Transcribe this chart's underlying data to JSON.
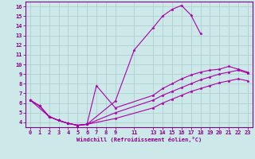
{
  "xlabel": "Windchill (Refroidissement éolien,°C)",
  "xlim": [
    -0.5,
    23.5
  ],
  "ylim": [
    3.5,
    16.5
  ],
  "xticks": [
    0,
    1,
    2,
    3,
    4,
    5,
    6,
    7,
    8,
    9,
    11,
    13,
    14,
    15,
    16,
    17,
    18,
    19,
    20,
    21,
    22,
    23
  ],
  "yticks": [
    4,
    5,
    6,
    7,
    8,
    9,
    10,
    11,
    12,
    13,
    14,
    15,
    16
  ],
  "bg_color": "#cce8e8",
  "line_color": "#aa00aa",
  "grid_color": "#aacccc",
  "curves": [
    {
      "x": [
        0,
        1,
        2,
        3,
        4,
        5,
        6,
        9,
        11,
        13,
        14,
        15,
        16,
        17,
        18
      ],
      "y": [
        6.3,
        5.7,
        4.6,
        4.2,
        3.9,
        3.7,
        3.8,
        6.2,
        11.5,
        13.8,
        15.0,
        15.7,
        16.1,
        15.1,
        13.2
      ]
    },
    {
      "x": [
        0,
        1,
        2,
        3,
        4,
        5,
        6,
        7,
        9,
        13,
        14,
        15,
        16,
        17,
        18,
        19,
        20,
        21,
        22,
        23
      ],
      "y": [
        6.3,
        5.7,
        4.6,
        4.2,
        3.9,
        3.7,
        3.8,
        7.8,
        5.5,
        6.8,
        7.5,
        8.0,
        8.5,
        8.9,
        9.2,
        9.4,
        9.5,
        9.8,
        9.5,
        9.2
      ]
    },
    {
      "x": [
        0,
        2,
        3,
        4,
        5,
        6,
        9,
        13,
        14,
        15,
        16,
        17,
        18,
        19,
        20,
        21,
        22,
        23
      ],
      "y": [
        6.3,
        4.6,
        4.2,
        3.9,
        3.7,
        3.8,
        5.0,
        6.3,
        6.8,
        7.2,
        7.6,
        8.0,
        8.4,
        8.7,
        9.0,
        9.2,
        9.4,
        9.1
      ]
    },
    {
      "x": [
        0,
        1,
        2,
        3,
        4,
        5,
        6,
        9,
        13,
        14,
        15,
        16,
        17,
        18,
        19,
        20,
        21,
        22,
        23
      ],
      "y": [
        6.3,
        5.7,
        4.6,
        4.2,
        3.9,
        3.7,
        3.8,
        4.4,
        5.5,
        6.0,
        6.4,
        6.8,
        7.2,
        7.5,
        7.8,
        8.1,
        8.3,
        8.5,
        8.3
      ]
    }
  ]
}
